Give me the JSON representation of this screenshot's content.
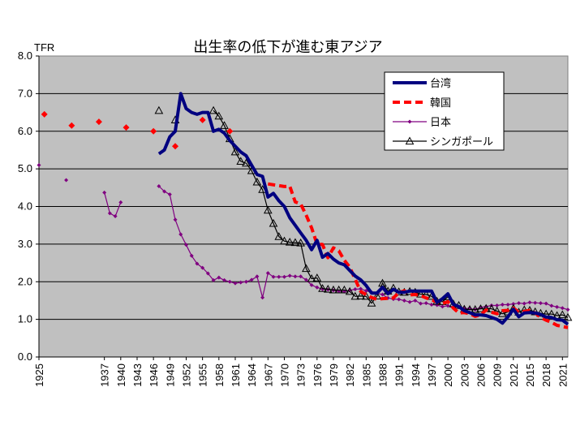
{
  "chart_data": {
    "type": "line",
    "title": "出生率の低下が進む東アジア",
    "ylabel": "TFR",
    "xlabel": "",
    "ylim": [
      0,
      8
    ],
    "xlim": [
      1925,
      2022
    ],
    "y_ticks": [
      "0.0",
      "1.0",
      "2.0",
      "3.0",
      "4.0",
      "5.0",
      "6.0",
      "7.0",
      "8.0"
    ],
    "x_ticks": [
      "1925",
      "1937",
      "1940",
      "1943",
      "1946",
      "1949",
      "1952",
      "1955",
      "1958",
      "1961",
      "1964",
      "1967",
      "1970",
      "1973",
      "1976",
      "1979",
      "1982",
      "1985",
      "1988",
      "1991",
      "1994",
      "1997",
      "2000",
      "2003",
      "2006",
      "2009",
      "2012",
      "2015",
      "2018",
      "2021"
    ],
    "grid": true,
    "legend_position": "top-right",
    "plot_background": "#c0c0c0",
    "series": [
      {
        "name": "台湾",
        "color": "#000080",
        "style": "thick-solid",
        "points": [
          [
            1947,
            5.4
          ],
          [
            1948,
            5.5
          ],
          [
            1949,
            5.85
          ],
          [
            1950,
            6.0
          ],
          [
            1951,
            7.0
          ],
          [
            1952,
            6.6
          ],
          [
            1953,
            6.5
          ],
          [
            1954,
            6.45
          ],
          [
            1955,
            6.5
          ],
          [
            1956,
            6.5
          ],
          [
            1957,
            6.0
          ],
          [
            1958,
            6.05
          ],
          [
            1959,
            5.95
          ],
          [
            1960,
            5.75
          ],
          [
            1961,
            5.6
          ],
          [
            1962,
            5.45
          ],
          [
            1963,
            5.35
          ],
          [
            1964,
            5.1
          ],
          [
            1965,
            4.85
          ],
          [
            1966,
            4.8
          ],
          [
            1967,
            4.25
          ],
          [
            1968,
            4.35
          ],
          [
            1969,
            4.15
          ],
          [
            1970,
            4.0
          ],
          [
            1971,
            3.7
          ],
          [
            1972,
            3.5
          ],
          [
            1973,
            3.3
          ],
          [
            1974,
            3.1
          ],
          [
            1975,
            2.85
          ],
          [
            1976,
            3.1
          ],
          [
            1977,
            2.65
          ],
          [
            1978,
            2.75
          ],
          [
            1979,
            2.6
          ],
          [
            1980,
            2.5
          ],
          [
            1981,
            2.45
          ],
          [
            1982,
            2.3
          ],
          [
            1983,
            2.15
          ],
          [
            1984,
            2.05
          ],
          [
            1985,
            1.9
          ],
          [
            1986,
            1.7
          ],
          [
            1987,
            1.7
          ],
          [
            1988,
            1.85
          ],
          [
            1989,
            1.68
          ],
          [
            1990,
            1.8
          ],
          [
            1991,
            1.72
          ],
          [
            1992,
            1.72
          ],
          [
            1993,
            1.75
          ],
          [
            1994,
            1.75
          ],
          [
            1995,
            1.75
          ],
          [
            1996,
            1.75
          ],
          [
            1997,
            1.75
          ],
          [
            1998,
            1.45
          ],
          [
            1999,
            1.55
          ],
          [
            2000,
            1.68
          ],
          [
            2001,
            1.4
          ],
          [
            2002,
            1.34
          ],
          [
            2003,
            1.23
          ],
          [
            2004,
            1.18
          ],
          [
            2005,
            1.12
          ],
          [
            2006,
            1.12
          ],
          [
            2007,
            1.1
          ],
          [
            2008,
            1.05
          ],
          [
            2009,
            1.0
          ],
          [
            2010,
            0.9
          ],
          [
            2011,
            1.07
          ],
          [
            2012,
            1.27
          ],
          [
            2013,
            1.07
          ],
          [
            2014,
            1.17
          ],
          [
            2015,
            1.18
          ],
          [
            2016,
            1.17
          ],
          [
            2017,
            1.13
          ],
          [
            2018,
            1.06
          ],
          [
            2019,
            1.05
          ],
          [
            2020,
            0.99
          ],
          [
            2021,
            0.98
          ],
          [
            2022,
            0.87
          ]
        ]
      },
      {
        "name": "韓国",
        "color": "#ff0000",
        "style": "thick-dashed",
        "markers_only_until": 1962,
        "points": [
          [
            1926,
            6.45
          ],
          [
            1931,
            6.15
          ],
          [
            1936,
            6.25
          ],
          [
            1941,
            6.1
          ],
          [
            1946,
            6.0
          ],
          [
            1950,
            5.6
          ],
          [
            1955,
            6.3
          ],
          [
            1960,
            6.0
          ],
          [
            1967,
            4.6
          ],
          [
            1970,
            4.53
          ],
          [
            1971,
            4.54
          ],
          [
            1972,
            4.12
          ],
          [
            1973,
            4.07
          ],
          [
            1974,
            3.77
          ],
          [
            1975,
            3.43
          ],
          [
            1976,
            3.0
          ],
          [
            1977,
            2.99
          ],
          [
            1978,
            2.64
          ],
          [
            1979,
            2.9
          ],
          [
            1980,
            2.82
          ],
          [
            1981,
            2.57
          ],
          [
            1982,
            2.39
          ],
          [
            1983,
            2.06
          ],
          [
            1984,
            1.74
          ],
          [
            1985,
            1.66
          ],
          [
            1986,
            1.58
          ],
          [
            1987,
            1.53
          ],
          [
            1988,
            1.55
          ],
          [
            1989,
            1.56
          ],
          [
            1990,
            1.57
          ],
          [
            1991,
            1.71
          ],
          [
            1992,
            1.76
          ],
          [
            1993,
            1.65
          ],
          [
            1994,
            1.66
          ],
          [
            1995,
            1.63
          ],
          [
            1996,
            1.57
          ],
          [
            1997,
            1.52
          ],
          [
            1998,
            1.46
          ],
          [
            1999,
            1.42
          ],
          [
            2000,
            1.47
          ],
          [
            2001,
            1.3
          ],
          [
            2002,
            1.17
          ],
          [
            2003,
            1.18
          ],
          [
            2004,
            1.15
          ],
          [
            2005,
            1.08
          ],
          [
            2006,
            1.12
          ],
          [
            2007,
            1.25
          ],
          [
            2008,
            1.19
          ],
          [
            2009,
            1.15
          ],
          [
            2010,
            1.23
          ],
          [
            2011,
            1.24
          ],
          [
            2012,
            1.3
          ],
          [
            2013,
            1.19
          ],
          [
            2014,
            1.21
          ],
          [
            2015,
            1.24
          ],
          [
            2016,
            1.17
          ],
          [
            2017,
            1.05
          ],
          [
            2018,
            0.98
          ],
          [
            2019,
            0.92
          ],
          [
            2020,
            0.84
          ],
          [
            2021,
            0.81
          ],
          [
            2022,
            0.78
          ]
        ]
      },
      {
        "name": "日本",
        "color": "#800080",
        "style": "thin-solid-diamond",
        "points": [
          [
            1925,
            5.1
          ],
          [
            1930,
            4.7
          ],
          [
            1937,
            4.37
          ],
          [
            1938,
            3.82
          ],
          [
            1939,
            3.74
          ],
          [
            1940,
            4.11
          ],
          [
            1947,
            4.54
          ],
          [
            1948,
            4.4
          ],
          [
            1949,
            4.32
          ],
          [
            1950,
            3.65
          ],
          [
            1951,
            3.26
          ],
          [
            1952,
            2.98
          ],
          [
            1953,
            2.69
          ],
          [
            1954,
            2.48
          ],
          [
            1955,
            2.37
          ],
          [
            1956,
            2.22
          ],
          [
            1957,
            2.04
          ],
          [
            1958,
            2.11
          ],
          [
            1959,
            2.04
          ],
          [
            1960,
            2.0
          ],
          [
            1961,
            1.96
          ],
          [
            1962,
            1.98
          ],
          [
            1963,
            2.0
          ],
          [
            1964,
            2.05
          ],
          [
            1965,
            2.14
          ],
          [
            1966,
            1.58
          ],
          [
            1967,
            2.23
          ],
          [
            1968,
            2.13
          ],
          [
            1969,
            2.13
          ],
          [
            1970,
            2.13
          ],
          [
            1971,
            2.16
          ],
          [
            1972,
            2.14
          ],
          [
            1973,
            2.14
          ],
          [
            1974,
            2.05
          ],
          [
            1975,
            1.91
          ],
          [
            1976,
            1.85
          ],
          [
            1977,
            1.8
          ],
          [
            1978,
            1.79
          ],
          [
            1979,
            1.77
          ],
          [
            1980,
            1.75
          ],
          [
            1981,
            1.74
          ],
          [
            1982,
            1.77
          ],
          [
            1983,
            1.8
          ],
          [
            1984,
            1.81
          ],
          [
            1985,
            1.76
          ],
          [
            1986,
            1.72
          ],
          [
            1987,
            1.69
          ],
          [
            1988,
            1.66
          ],
          [
            1989,
            1.57
          ],
          [
            1990,
            1.54
          ],
          [
            1991,
            1.53
          ],
          [
            1992,
            1.5
          ],
          [
            1993,
            1.46
          ],
          [
            1994,
            1.5
          ],
          [
            1995,
            1.42
          ],
          [
            1996,
            1.43
          ],
          [
            1997,
            1.39
          ],
          [
            1998,
            1.38
          ],
          [
            1999,
            1.34
          ],
          [
            2000,
            1.36
          ],
          [
            2001,
            1.33
          ],
          [
            2002,
            1.32
          ],
          [
            2003,
            1.29
          ],
          [
            2004,
            1.29
          ],
          [
            2005,
            1.26
          ],
          [
            2006,
            1.32
          ],
          [
            2007,
            1.34
          ],
          [
            2008,
            1.37
          ],
          [
            2009,
            1.37
          ],
          [
            2010,
            1.39
          ],
          [
            2011,
            1.39
          ],
          [
            2012,
            1.41
          ],
          [
            2013,
            1.43
          ],
          [
            2014,
            1.42
          ],
          [
            2015,
            1.45
          ],
          [
            2016,
            1.44
          ],
          [
            2017,
            1.43
          ],
          [
            2018,
            1.42
          ],
          [
            2019,
            1.36
          ],
          [
            2020,
            1.33
          ],
          [
            2021,
            1.3
          ],
          [
            2022,
            1.26
          ]
        ]
      },
      {
        "name": "シンガポール",
        "color": "#000000",
        "style": "thin-solid-triangle",
        "markers_only_until": 1956,
        "points": [
          [
            1947,
            6.55
          ],
          [
            1950,
            6.3
          ],
          [
            1957,
            6.55
          ],
          [
            1958,
            6.4
          ],
          [
            1959,
            6.15
          ],
          [
            1960,
            5.8
          ],
          [
            1961,
            5.45
          ],
          [
            1962,
            5.2
          ],
          [
            1963,
            5.15
          ],
          [
            1964,
            4.95
          ],
          [
            1965,
            4.65
          ],
          [
            1966,
            4.45
          ],
          [
            1967,
            3.9
          ],
          [
            1968,
            3.55
          ],
          [
            1969,
            3.2
          ],
          [
            1970,
            3.08
          ],
          [
            1971,
            3.05
          ],
          [
            1972,
            3.04
          ],
          [
            1973,
            3.03
          ],
          [
            1974,
            2.35
          ],
          [
            1975,
            2.08
          ],
          [
            1976,
            2.1
          ],
          [
            1977,
            1.82
          ],
          [
            1978,
            1.8
          ],
          [
            1979,
            1.78
          ],
          [
            1980,
            1.78
          ],
          [
            1981,
            1.78
          ],
          [
            1982,
            1.74
          ],
          [
            1983,
            1.61
          ],
          [
            1984,
            1.62
          ],
          [
            1985,
            1.61
          ],
          [
            1986,
            1.43
          ],
          [
            1987,
            1.62
          ],
          [
            1988,
            1.96
          ],
          [
            1989,
            1.75
          ],
          [
            1990,
            1.83
          ],
          [
            1991,
            1.73
          ],
          [
            1992,
            1.72
          ],
          [
            1993,
            1.74
          ],
          [
            1994,
            1.72
          ],
          [
            1995,
            1.67
          ],
          [
            1996,
            1.66
          ],
          [
            1997,
            1.61
          ],
          [
            1998,
            1.48
          ],
          [
            1999,
            1.47
          ],
          [
            2000,
            1.6
          ],
          [
            2001,
            1.41
          ],
          [
            2002,
            1.37
          ],
          [
            2003,
            1.27
          ],
          [
            2004,
            1.26
          ],
          [
            2005,
            1.26
          ],
          [
            2006,
            1.28
          ],
          [
            2007,
            1.29
          ],
          [
            2008,
            1.28
          ],
          [
            2009,
            1.22
          ],
          [
            2010,
            1.15
          ],
          [
            2011,
            1.2
          ],
          [
            2012,
            1.29
          ],
          [
            2013,
            1.19
          ],
          [
            2014,
            1.25
          ],
          [
            2015,
            1.24
          ],
          [
            2016,
            1.2
          ],
          [
            2017,
            1.16
          ],
          [
            2018,
            1.14
          ],
          [
            2019,
            1.14
          ],
          [
            2020,
            1.1
          ],
          [
            2021,
            1.12
          ],
          [
            2022,
            1.05
          ]
        ]
      }
    ]
  }
}
